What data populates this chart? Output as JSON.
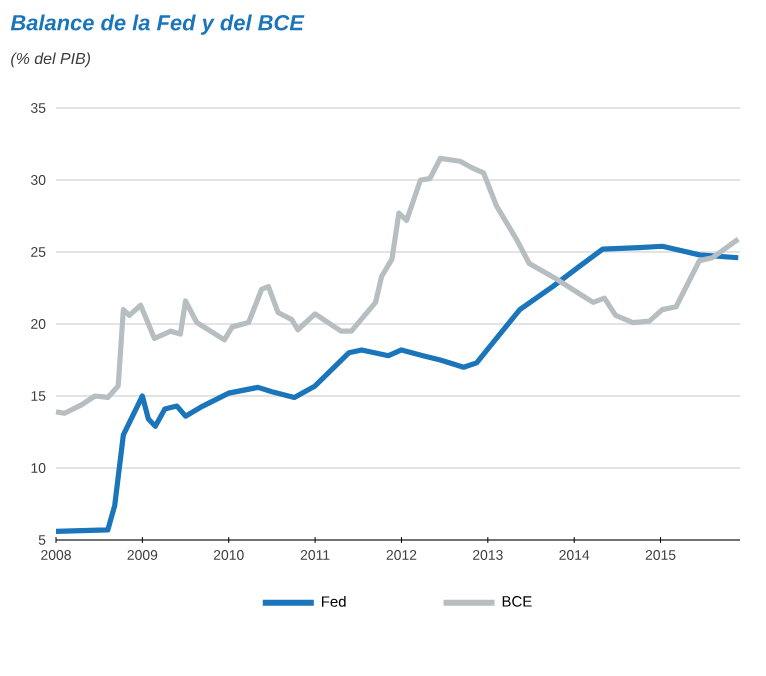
{
  "chart_data": {
    "type": "line",
    "title": "Balance de la Fed y del BCE",
    "subtitle": "(% del PIB)",
    "xlim": [
      2008,
      2015.92
    ],
    "xticks": [
      2008,
      2009,
      2010,
      2011,
      2012,
      2013,
      2014,
      2015
    ],
    "ylim": [
      5,
      35
    ],
    "yticks": [
      5,
      10,
      15,
      20,
      25,
      30,
      35
    ],
    "grid": "y",
    "legend": "bottom",
    "series": [
      {
        "name": "Fed",
        "color": "#1a75bb",
        "x": [
          2008.0,
          2008.6,
          2008.68,
          2008.78,
          2009.0,
          2009.07,
          2009.15,
          2009.26,
          2009.4,
          2009.5,
          2009.7,
          2010.0,
          2010.34,
          2010.5,
          2010.76,
          2011.0,
          2011.39,
          2011.54,
          2011.85,
          2012.0,
          2012.25,
          2012.45,
          2012.72,
          2012.87,
          2013.06,
          2013.37,
          2013.75,
          2014.06,
          2014.33,
          2014.75,
          2015.02,
          2015.45,
          2015.9
        ],
        "values": [
          5.6,
          5.7,
          7.4,
          12.3,
          15.0,
          13.4,
          12.9,
          14.1,
          14.3,
          13.6,
          14.3,
          15.2,
          15.6,
          15.3,
          14.9,
          15.7,
          18.0,
          18.2,
          17.8,
          18.2,
          17.8,
          17.5,
          17.0,
          17.3,
          18.7,
          21.0,
          22.6,
          24.0,
          25.2,
          25.3,
          25.4,
          24.8,
          24.6
        ]
      },
      {
        "name": "BCE",
        "color": "#b7bec2",
        "x": [
          2008.0,
          2008.1,
          2008.3,
          2008.45,
          2008.6,
          2008.72,
          2008.78,
          2008.85,
          2008.98,
          2009.14,
          2009.33,
          2009.44,
          2009.5,
          2009.63,
          2009.95,
          2010.04,
          2010.23,
          2010.38,
          2010.46,
          2010.57,
          2010.73,
          2010.8,
          2011.0,
          2011.3,
          2011.42,
          2011.7,
          2011.77,
          2011.89,
          2011.97,
          2012.06,
          2012.22,
          2012.33,
          2012.45,
          2012.68,
          2012.8,
          2012.95,
          2013.1,
          2013.33,
          2013.48,
          2013.8,
          2014.06,
          2014.22,
          2014.35,
          2014.48,
          2014.68,
          2014.87,
          2015.02,
          2015.18,
          2015.45,
          2015.6,
          2015.9
        ],
        "values": [
          13.9,
          13.8,
          14.4,
          15.0,
          14.9,
          15.7,
          21.0,
          20.6,
          21.3,
          19.0,
          19.5,
          19.3,
          21.6,
          20.1,
          18.9,
          19.8,
          20.1,
          22.4,
          22.6,
          20.8,
          20.3,
          19.6,
          20.7,
          19.5,
          19.5,
          21.5,
          23.3,
          24.5,
          27.7,
          27.2,
          30.0,
          30.1,
          31.5,
          31.3,
          30.9,
          30.5,
          28.2,
          25.9,
          24.2,
          23.1,
          22.1,
          21.5,
          21.8,
          20.6,
          20.1,
          20.2,
          21.0,
          21.2,
          24.4,
          24.6,
          25.9
        ]
      }
    ]
  }
}
